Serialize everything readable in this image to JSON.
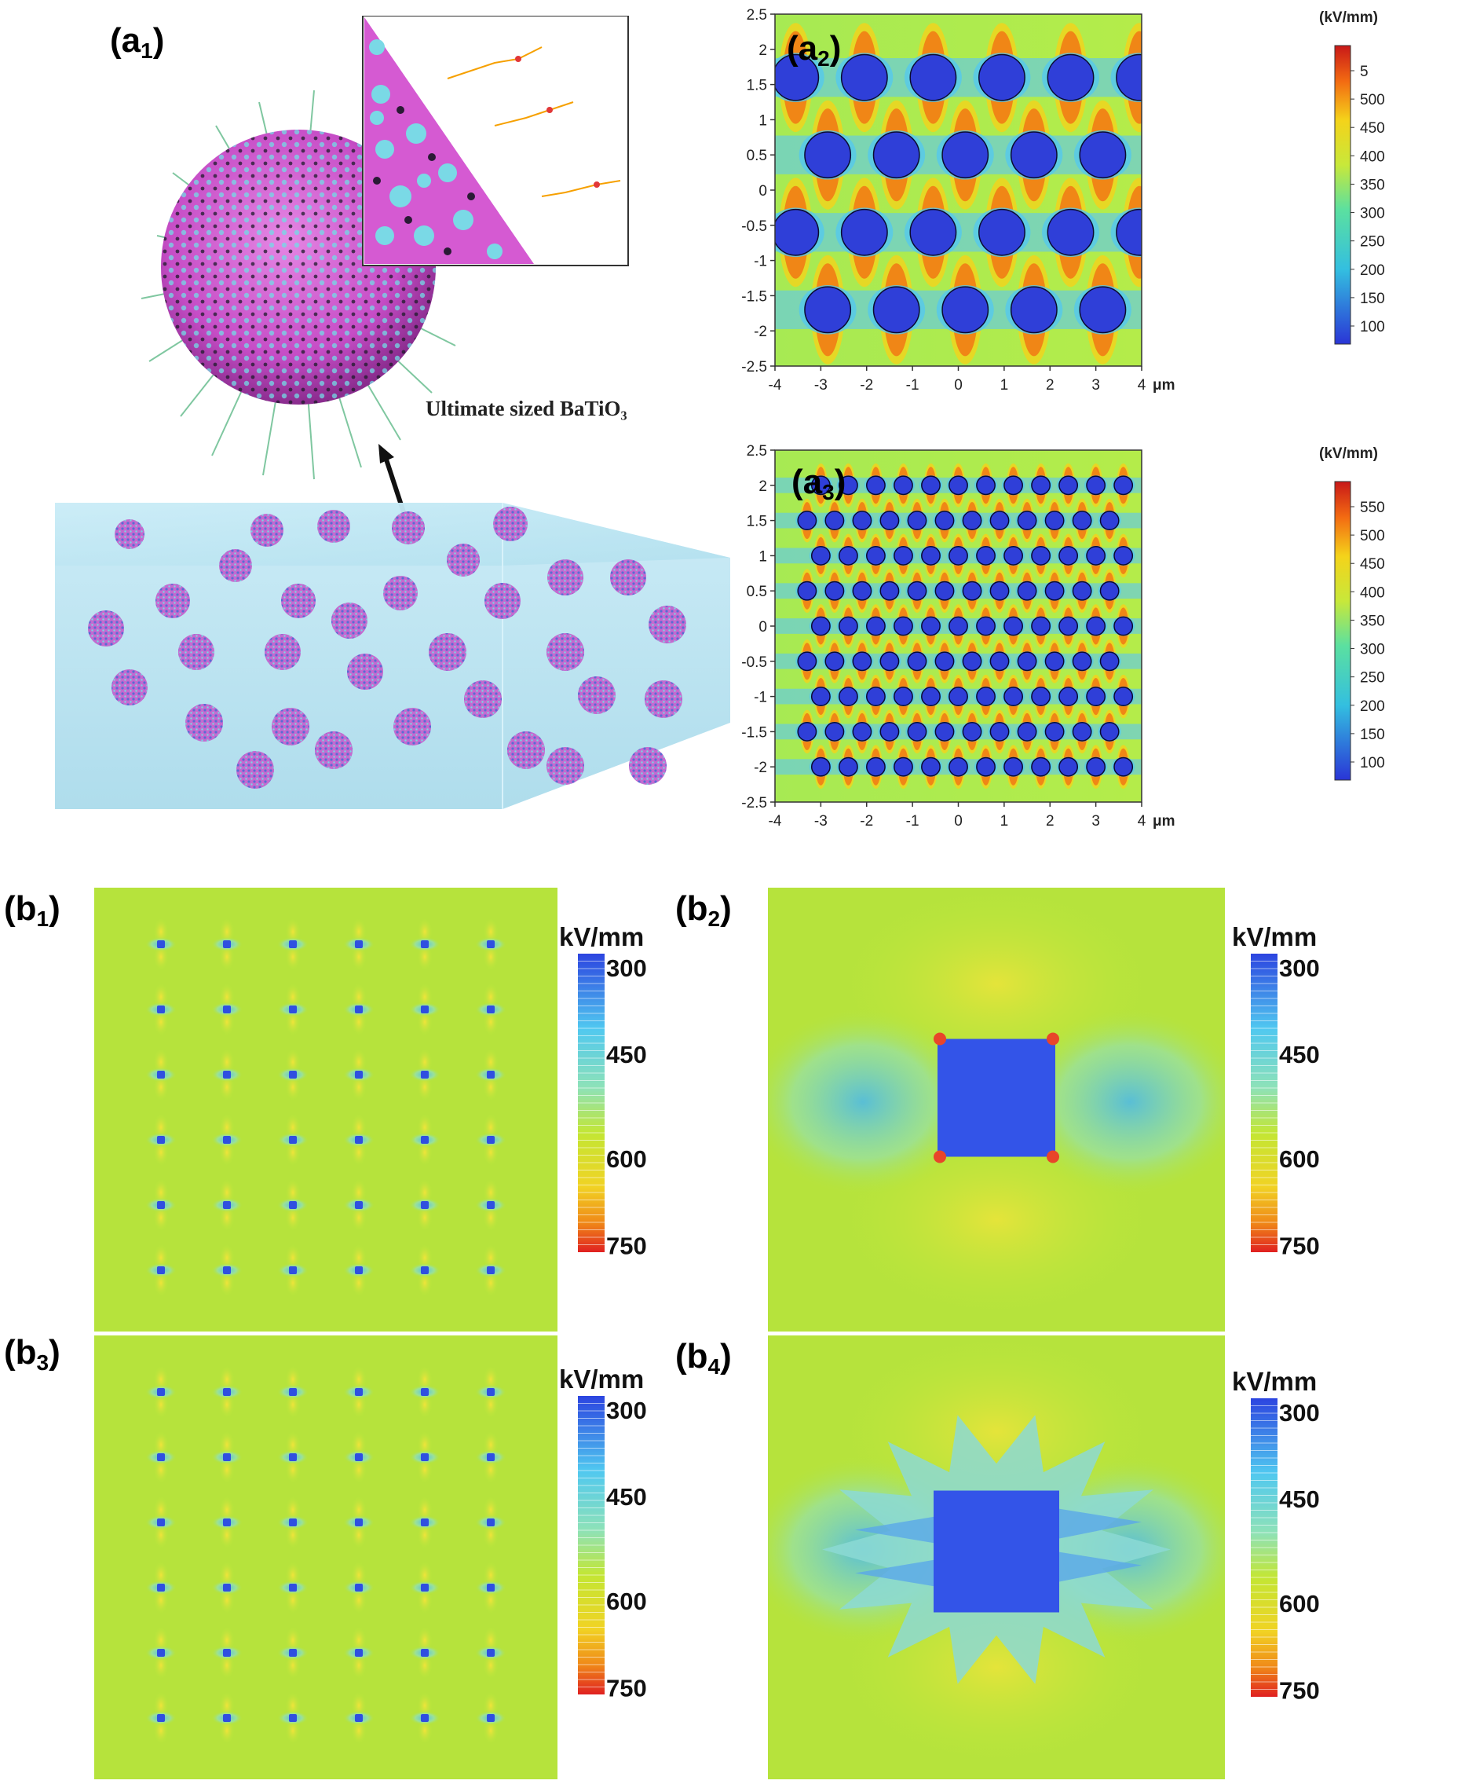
{
  "labels": {
    "a1": {
      "main": "(a",
      "sub": "1",
      "close": ")"
    },
    "a2": {
      "main": "(a",
      "sub": "2",
      "close": ")"
    },
    "a3": {
      "main": "(a",
      "sub": "3",
      "close": ")"
    },
    "b1": {
      "main": "(b",
      "sub": "1",
      "close": ")"
    },
    "b2": {
      "main": "(b",
      "sub": "2",
      "close": ")"
    },
    "b3": {
      "main": "(b",
      "sub": "3",
      "close": ")"
    },
    "b4": {
      "main": "(b",
      "sub": "4",
      "close": ")"
    }
  },
  "a1": {
    "caption": "Ultimate sized BaTiO₃",
    "colors": {
      "particle": "#d15bd0",
      "shell_dots": "#5fd4e0",
      "matrix": "#bfe6f2"
    }
  },
  "a2": {
    "unit": "(kV/mm)",
    "x_unit": "μm",
    "x_ticks": [
      "-4",
      "-3",
      "-2",
      "-1",
      "0",
      "1",
      "2",
      "3",
      "4"
    ],
    "y_ticks": [
      "2.5",
      "2",
      "1.5",
      "1",
      "0.5",
      "0",
      "-0.5",
      "-1",
      "-1.5",
      "-2",
      "-2.5"
    ],
    "xlim": [
      -4,
      4
    ],
    "ylim": [
      -2.5,
      2.5
    ],
    "colorbar_ticks": [
      "5",
      "500",
      "450",
      "400",
      "350",
      "300",
      "250",
      "200",
      "150",
      "100"
    ]
  },
  "a3": {
    "unit": "(kV/mm)",
    "x_unit": "μm",
    "x_ticks": [
      "-4",
      "-3",
      "-2",
      "-1",
      "0",
      "1",
      "2",
      "3",
      "4"
    ],
    "y_ticks": [
      "2.5",
      "2",
      "1.5",
      "1",
      "0.5",
      "0",
      "-0.5",
      "-1",
      "-1.5",
      "-2",
      "-2.5"
    ],
    "xlim": [
      -4,
      4
    ],
    "ylim": [
      -2.5,
      2.5
    ],
    "colorbar_ticks": [
      "550",
      "500",
      "450",
      "400",
      "350",
      "300",
      "250",
      "200",
      "150",
      "100"
    ]
  },
  "b_colorbar": {
    "unit": "kV/mm",
    "ticks": [
      "300",
      "450",
      "600",
      "750"
    ]
  }
}
